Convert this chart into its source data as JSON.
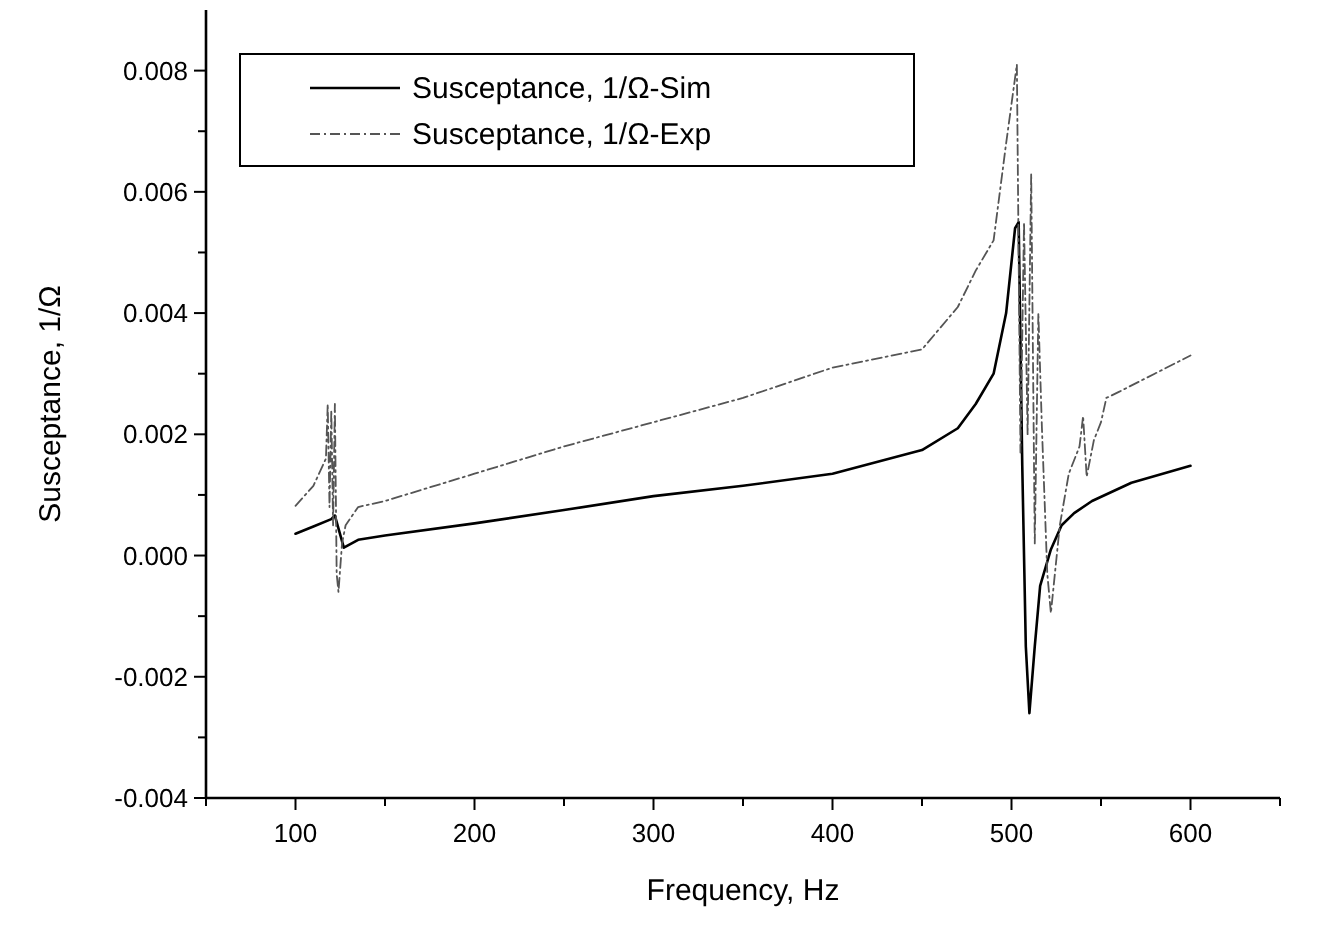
{
  "chart_data": {
    "type": "line",
    "xlabel": "Frequency, Hz",
    "ylabel": "Susceptance, 1/Ω",
    "xlim": [
      50,
      650
    ],
    "ylim": [
      -0.004,
      0.009
    ],
    "xticks": [
      {
        "value": 50,
        "label": null
      },
      100,
      {
        "value": 150,
        "label": null
      },
      200,
      {
        "value": 250,
        "label": null
      },
      300,
      {
        "value": 350,
        "label": null
      },
      400,
      {
        "value": 450,
        "label": null
      },
      500,
      {
        "value": 550,
        "label": null
      },
      600,
      {
        "value": 650,
        "label": null
      }
    ],
    "yticks": [
      {
        "value": -0.004,
        "label": "-0.004"
      },
      {
        "value": -0.003,
        "label": null
      },
      {
        "value": -0.002,
        "label": "-0.002"
      },
      {
        "value": -0.001,
        "label": null
      },
      {
        "value": 0,
        "label": "0.000"
      },
      {
        "value": 0.001,
        "label": null
      },
      {
        "value": 0.002,
        "label": "0.002"
      },
      {
        "value": 0.003,
        "label": null
      },
      {
        "value": 0.004,
        "label": "0.004"
      },
      {
        "value": 0.005,
        "label": null
      },
      {
        "value": 0.006,
        "label": "0.006"
      },
      {
        "value": 0.007,
        "label": null
      },
      {
        "value": 0.008,
        "label": "0.008"
      }
    ],
    "grid": false,
    "legend": "top left",
    "series": [
      {
        "name": "Susceptance, 1/Ω-Sim",
        "color": "#000000",
        "line_style": "solid",
        "x": [
          100,
          110,
          120,
          122,
          127,
          135,
          150,
          200,
          250,
          300,
          350,
          400,
          450,
          470,
          480,
          490,
          497,
          502,
          504,
          506,
          508,
          510,
          513,
          516,
          522,
          528,
          535,
          545,
          567,
          600
        ],
        "values": [
          0.00036,
          0.00048,
          0.0006,
          0.00066,
          0.00013,
          0.00026,
          0.00033,
          0.00053,
          0.00075,
          0.00098,
          0.00115,
          0.00135,
          0.00174,
          0.0021,
          0.0025,
          0.003,
          0.004,
          0.0054,
          0.0055,
          0.0015,
          -0.0015,
          -0.0026,
          -0.0015,
          -0.0005,
          0.0001,
          0.0005,
          0.0007,
          0.0009,
          0.0012,
          0.00148
        ]
      },
      {
        "name": "Susceptance, 1/Ω-Exp",
        "color": "#555555",
        "line_style": "dashdot",
        "x": [
          100,
          110,
          117,
          118,
          119,
          120,
          121,
          122,
          123,
          124,
          126,
          128,
          135,
          150,
          200,
          250,
          300,
          350,
          400,
          450,
          470,
          480,
          490,
          497,
          503,
          505,
          507,
          509,
          511,
          513,
          515,
          517,
          520,
          522,
          527,
          532,
          538,
          540,
          542,
          546,
          550,
          553,
          560,
          580,
          600
        ],
        "values": [
          0.00082,
          0.00115,
          0.0016,
          0.0025,
          0.0008,
          0.0024,
          0.0005,
          0.0025,
          -0.0003,
          -0.0006,
          0.0002,
          0.0005,
          0.0008,
          0.0009,
          0.00135,
          0.0018,
          0.0022,
          0.0026,
          0.0031,
          0.0034,
          0.0041,
          0.0047,
          0.0052,
          0.0068,
          0.0081,
          0.0017,
          0.0055,
          0.002,
          0.0063,
          0.0002,
          0.004,
          0.0021,
          -0.0003,
          -0.00095,
          0.0005,
          0.00135,
          0.0018,
          0.0023,
          0.0013,
          0.0019,
          0.0022,
          0.0026,
          0.0027,
          0.003,
          0.0033
        ]
      }
    ]
  }
}
